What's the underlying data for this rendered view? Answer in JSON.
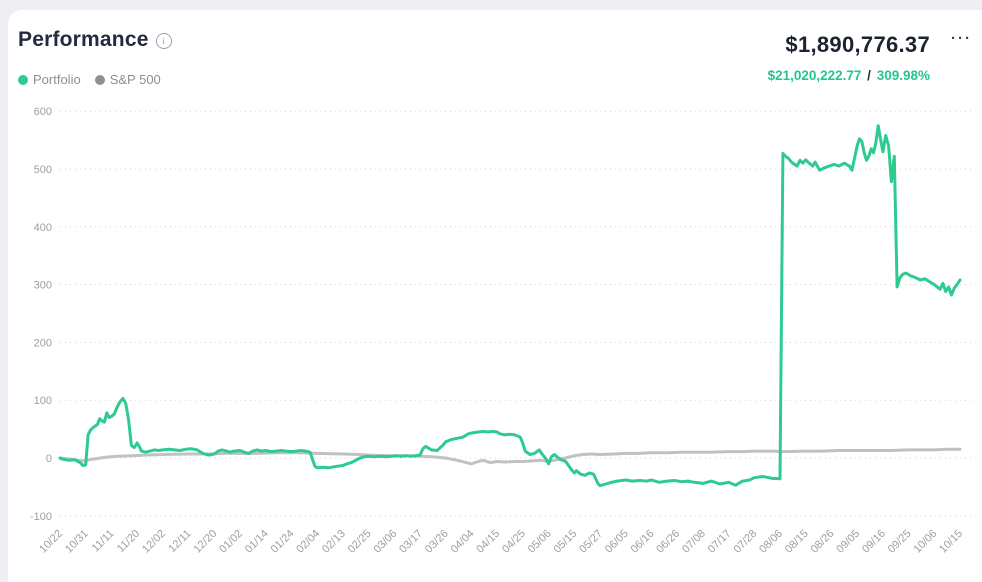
{
  "header": {
    "title": "Performance",
    "menu_label": "···",
    "main_value": "$1,890,776.37",
    "gain_value": "$21,020,222.77",
    "separator": "/",
    "gain_percent": "309.98%"
  },
  "legend": [
    {
      "label": "Portfolio",
      "color": "#2dcb8f"
    },
    {
      "label": "S&P 500",
      "color": "#8e9196"
    }
  ],
  "colors": {
    "portfolio_line": "#2dcb8f",
    "sp500_line": "#bfc1c5",
    "grid": "#cfd2d8",
    "axis_text": "#9aa0a8",
    "title_text": "#232b3e",
    "value_text": "#1b2230",
    "gain_text": "#25c492",
    "card_bg": "#ffffff",
    "page_bg": "#edeff3"
  },
  "chart_data": {
    "type": "line",
    "title": "Performance",
    "xlabel": "",
    "ylabel": "",
    "ylim": [
      -100,
      600
    ],
    "y_ticks": [
      600,
      500,
      400,
      300,
      200,
      100,
      0,
      -100
    ],
    "grid": "dotted-horizontal",
    "legend_position": "top-left",
    "x_tick_labels": [
      "10/22",
      "10/31",
      "11/11",
      "11/20",
      "12/02",
      "12/11",
      "12/20",
      "01/02",
      "01/14",
      "01/24",
      "02/04",
      "02/13",
      "02/25",
      "03/06",
      "03/17",
      "03/26",
      "04/04",
      "04/15",
      "04/25",
      "05/06",
      "05/15",
      "05/27",
      "06/05",
      "06/16",
      "06/26",
      "07/08",
      "07/17",
      "07/28",
      "08/06",
      "08/15",
      "08/26",
      "09/05",
      "09/16",
      "09/25",
      "10/06",
      "10/15"
    ],
    "series": [
      {
        "name": "Portfolio",
        "color": "#2dcb8f",
        "points": [
          [
            "10/22",
            0
          ],
          [
            "10/23",
            -2
          ],
          [
            "10/25",
            -4
          ],
          [
            "10/27",
            -3
          ],
          [
            "10/29",
            -8
          ],
          [
            "10/30",
            -13
          ],
          [
            "10/31",
            -12
          ],
          [
            "11/01",
            40
          ],
          [
            "11/02",
            48
          ],
          [
            "11/03",
            52
          ],
          [
            "11/05",
            58
          ],
          [
            "11/06",
            68
          ],
          [
            "11/07",
            64
          ],
          [
            "11/08",
            62
          ],
          [
            "11/09",
            78
          ],
          [
            "11/10",
            70
          ],
          [
            "11/11",
            72
          ],
          [
            "11/12",
            76
          ],
          [
            "11/13",
            88
          ],
          [
            "11/14",
            97
          ],
          [
            "11/15",
            103
          ],
          [
            "11/16",
            95
          ],
          [
            "11/17",
            66
          ],
          [
            "11/18",
            22
          ],
          [
            "11/19",
            18
          ],
          [
            "11/20",
            26
          ],
          [
            "11/21",
            20
          ],
          [
            "11/22",
            12
          ],
          [
            "11/24",
            10
          ],
          [
            "11/26",
            12
          ],
          [
            "11/28",
            14
          ],
          [
            "11/30",
            13
          ],
          [
            "12/02",
            14
          ],
          [
            "12/04",
            15
          ],
          [
            "12/06",
            14
          ],
          [
            "12/08",
            13
          ],
          [
            "12/10",
            15
          ],
          [
            "12/12",
            16
          ],
          [
            "12/14",
            14
          ],
          [
            "12/16",
            8
          ],
          [
            "12/18",
            5
          ],
          [
            "12/20",
            7
          ],
          [
            "12/22",
            12
          ],
          [
            "12/24",
            14
          ],
          [
            "12/26",
            12
          ],
          [
            "12/28",
            10
          ],
          [
            "12/30",
            12
          ],
          [
            "01/02",
            13
          ],
          [
            "01/04",
            10
          ],
          [
            "01/06",
            8
          ],
          [
            "01/08",
            12
          ],
          [
            "01/10",
            14
          ],
          [
            "01/12",
            12
          ],
          [
            "01/14",
            13
          ],
          [
            "01/16",
            11
          ],
          [
            "01/18",
            12
          ],
          [
            "01/20",
            13
          ],
          [
            "01/22",
            12
          ],
          [
            "01/24",
            11
          ],
          [
            "01/26",
            12
          ],
          [
            "01/28",
            13
          ],
          [
            "01/30",
            12
          ],
          [
            "02/01",
            10
          ],
          [
            "02/03",
            -14
          ],
          [
            "02/04",
            -17
          ],
          [
            "02/06",
            -16
          ],
          [
            "02/08",
            -17
          ],
          [
            "02/10",
            -15
          ],
          [
            "02/13",
            -13
          ],
          [
            "02/15",
            -10
          ],
          [
            "02/17",
            -8
          ],
          [
            "02/19",
            -4
          ],
          [
            "02/21",
            0
          ],
          [
            "02/23",
            2
          ],
          [
            "02/25",
            3
          ],
          [
            "02/27",
            2
          ],
          [
            "03/01",
            3
          ],
          [
            "03/03",
            2
          ],
          [
            "03/05",
            3
          ],
          [
            "03/07",
            4
          ],
          [
            "03/09",
            3
          ],
          [
            "03/11",
            4
          ],
          [
            "03/13",
            3
          ],
          [
            "03/15",
            4
          ],
          [
            "03/17",
            5
          ],
          [
            "03/18",
            16
          ],
          [
            "03/19",
            20
          ],
          [
            "03/20",
            17
          ],
          [
            "03/21",
            14
          ],
          [
            "03/23",
            13
          ],
          [
            "03/25",
            22
          ],
          [
            "03/26",
            28
          ],
          [
            "03/28",
            32
          ],
          [
            "03/30",
            34
          ],
          [
            "04/01",
            36
          ],
          [
            "04/03",
            42
          ],
          [
            "04/05",
            44
          ],
          [
            "04/07",
            45
          ],
          [
            "04/09",
            46
          ],
          [
            "04/11",
            45
          ],
          [
            "04/13",
            46
          ],
          [
            "04/15",
            45
          ],
          [
            "04/16",
            42
          ],
          [
            "04/18",
            40
          ],
          [
            "04/20",
            41
          ],
          [
            "04/22",
            40
          ],
          [
            "04/24",
            36
          ],
          [
            "04/25",
            25
          ],
          [
            "04/26",
            12
          ],
          [
            "04/28",
            6
          ],
          [
            "04/30",
            8
          ],
          [
            "05/02",
            14
          ],
          [
            "05/03",
            8
          ],
          [
            "05/05",
            -2
          ],
          [
            "05/06",
            -10
          ],
          [
            "05/07",
            2
          ],
          [
            "05/08",
            6
          ],
          [
            "05/10",
            -2
          ],
          [
            "05/12",
            -6
          ],
          [
            "05/14",
            -20
          ],
          [
            "05/15",
            -26
          ],
          [
            "05/16",
            -22
          ],
          [
            "05/18",
            -28
          ],
          [
            "05/20",
            -30
          ],
          [
            "05/22",
            -26
          ],
          [
            "05/24",
            -28
          ],
          [
            "05/26",
            -44
          ],
          [
            "05/27",
            -48
          ],
          [
            "05/29",
            -45
          ],
          [
            "05/31",
            -42
          ],
          [
            "06/02",
            -40
          ],
          [
            "06/05",
            -38
          ],
          [
            "06/08",
            -40
          ],
          [
            "06/11",
            -39
          ],
          [
            "06/14",
            -40
          ],
          [
            "06/16",
            -38
          ],
          [
            "06/19",
            -42
          ],
          [
            "06/22",
            -40
          ],
          [
            "06/25",
            -39
          ],
          [
            "06/28",
            -41
          ],
          [
            "07/01",
            -40
          ],
          [
            "07/04",
            -42
          ],
          [
            "07/08",
            -44
          ],
          [
            "07/11",
            -40
          ],
          [
            "07/14",
            -45
          ],
          [
            "07/17",
            -42
          ],
          [
            "07/20",
            -47
          ],
          [
            "07/23",
            -40
          ],
          [
            "07/26",
            -38
          ],
          [
            "07/28",
            -34
          ],
          [
            "07/31",
            -32
          ],
          [
            "08/03",
            -35
          ],
          [
            "08/06",
            -36
          ],
          [
            "08/07",
            527
          ],
          [
            "08/08",
            522
          ],
          [
            "08/09",
            518
          ],
          [
            "08/10",
            512
          ],
          [
            "08/12",
            505
          ],
          [
            "08/13",
            515
          ],
          [
            "08/14",
            510
          ],
          [
            "08/15",
            516
          ],
          [
            "08/16",
            512
          ],
          [
            "08/18",
            505
          ],
          [
            "08/19",
            512
          ],
          [
            "08/21",
            498
          ],
          [
            "08/23",
            502
          ],
          [
            "08/25",
            505
          ],
          [
            "08/27",
            508
          ],
          [
            "08/29",
            505
          ],
          [
            "08/31",
            510
          ],
          [
            "09/02",
            505
          ],
          [
            "09/03",
            498
          ],
          [
            "09/05",
            540
          ],
          [
            "09/06",
            552
          ],
          [
            "09/07",
            548
          ],
          [
            "09/08",
            528
          ],
          [
            "09/09",
            515
          ],
          [
            "09/10",
            522
          ],
          [
            "09/11",
            535
          ],
          [
            "09/12",
            528
          ],
          [
            "09/13",
            545
          ],
          [
            "09/14",
            575
          ],
          [
            "09/15",
            552
          ],
          [
            "09/16",
            530
          ],
          [
            "09/17",
            558
          ],
          [
            "09/18",
            540
          ],
          [
            "09/19",
            478
          ],
          [
            "09/20",
            522
          ],
          [
            "09/21",
            296
          ],
          [
            "09/22",
            312
          ],
          [
            "09/23",
            318
          ],
          [
            "09/24",
            320
          ],
          [
            "09/26",
            315
          ],
          [
            "09/28",
            312
          ],
          [
            "09/30",
            308
          ],
          [
            "10/02",
            310
          ],
          [
            "10/04",
            305
          ],
          [
            "10/06",
            300
          ],
          [
            "10/08",
            292
          ],
          [
            "10/09",
            302
          ],
          [
            "10/10",
            288
          ],
          [
            "10/11",
            296
          ],
          [
            "10/12",
            282
          ],
          [
            "10/13",
            294
          ],
          [
            "10/14",
            300
          ],
          [
            "10/15",
            308
          ]
        ]
      },
      {
        "name": "S&P 500",
        "color": "#bfc1c5",
        "points": [
          [
            "10/22",
            0
          ],
          [
            "10/26",
            -2
          ],
          [
            "10/30",
            -5
          ],
          [
            "11/03",
            -2
          ],
          [
            "11/08",
            1
          ],
          [
            "11/13",
            3
          ],
          [
            "11/18",
            4
          ],
          [
            "11/24",
            5
          ],
          [
            "12/02",
            6
          ],
          [
            "12/10",
            7
          ],
          [
            "12/18",
            7
          ],
          [
            "12/26",
            8
          ],
          [
            "01/02",
            8
          ],
          [
            "01/10",
            8
          ],
          [
            "01/18",
            9
          ],
          [
            "01/26",
            9
          ],
          [
            "02/04",
            8
          ],
          [
            "02/13",
            7
          ],
          [
            "02/21",
            6
          ],
          [
            "02/25",
            5
          ],
          [
            "03/05",
            4
          ],
          [
            "03/13",
            4
          ],
          [
            "03/17",
            3
          ],
          [
            "03/21",
            2
          ],
          [
            "03/26",
            0
          ],
          [
            "03/30",
            -4
          ],
          [
            "04/04",
            -10
          ],
          [
            "04/07",
            -6
          ],
          [
            "04/09",
            -4
          ],
          [
            "04/12",
            -8
          ],
          [
            "04/15",
            -6
          ],
          [
            "04/18",
            -7
          ],
          [
            "04/22",
            -6
          ],
          [
            "04/25",
            -6
          ],
          [
            "04/29",
            -5
          ],
          [
            "05/03",
            -4
          ],
          [
            "05/06",
            -6
          ],
          [
            "05/09",
            -3
          ],
          [
            "05/12",
            0
          ],
          [
            "05/15",
            4
          ],
          [
            "05/19",
            6
          ],
          [
            "05/23",
            7
          ],
          [
            "05/27",
            6
          ],
          [
            "06/01",
            7
          ],
          [
            "06/05",
            8
          ],
          [
            "06/10",
            8
          ],
          [
            "06/16",
            9
          ],
          [
            "06/22",
            9
          ],
          [
            "06/28",
            10
          ],
          [
            "07/04",
            10
          ],
          [
            "07/10",
            10
          ],
          [
            "07/17",
            11
          ],
          [
            "07/24",
            11
          ],
          [
            "07/28",
            12
          ],
          [
            "08/03",
            12
          ],
          [
            "08/08",
            11
          ],
          [
            "08/15",
            12
          ],
          [
            "08/22",
            12
          ],
          [
            "08/29",
            13
          ],
          [
            "09/05",
            13
          ],
          [
            "09/12",
            13
          ],
          [
            "09/19",
            13
          ],
          [
            "09/25",
            14
          ],
          [
            "10/01",
            14
          ],
          [
            "10/06",
            14
          ],
          [
            "10/10",
            15
          ],
          [
            "10/15",
            15
          ]
        ]
      }
    ]
  }
}
